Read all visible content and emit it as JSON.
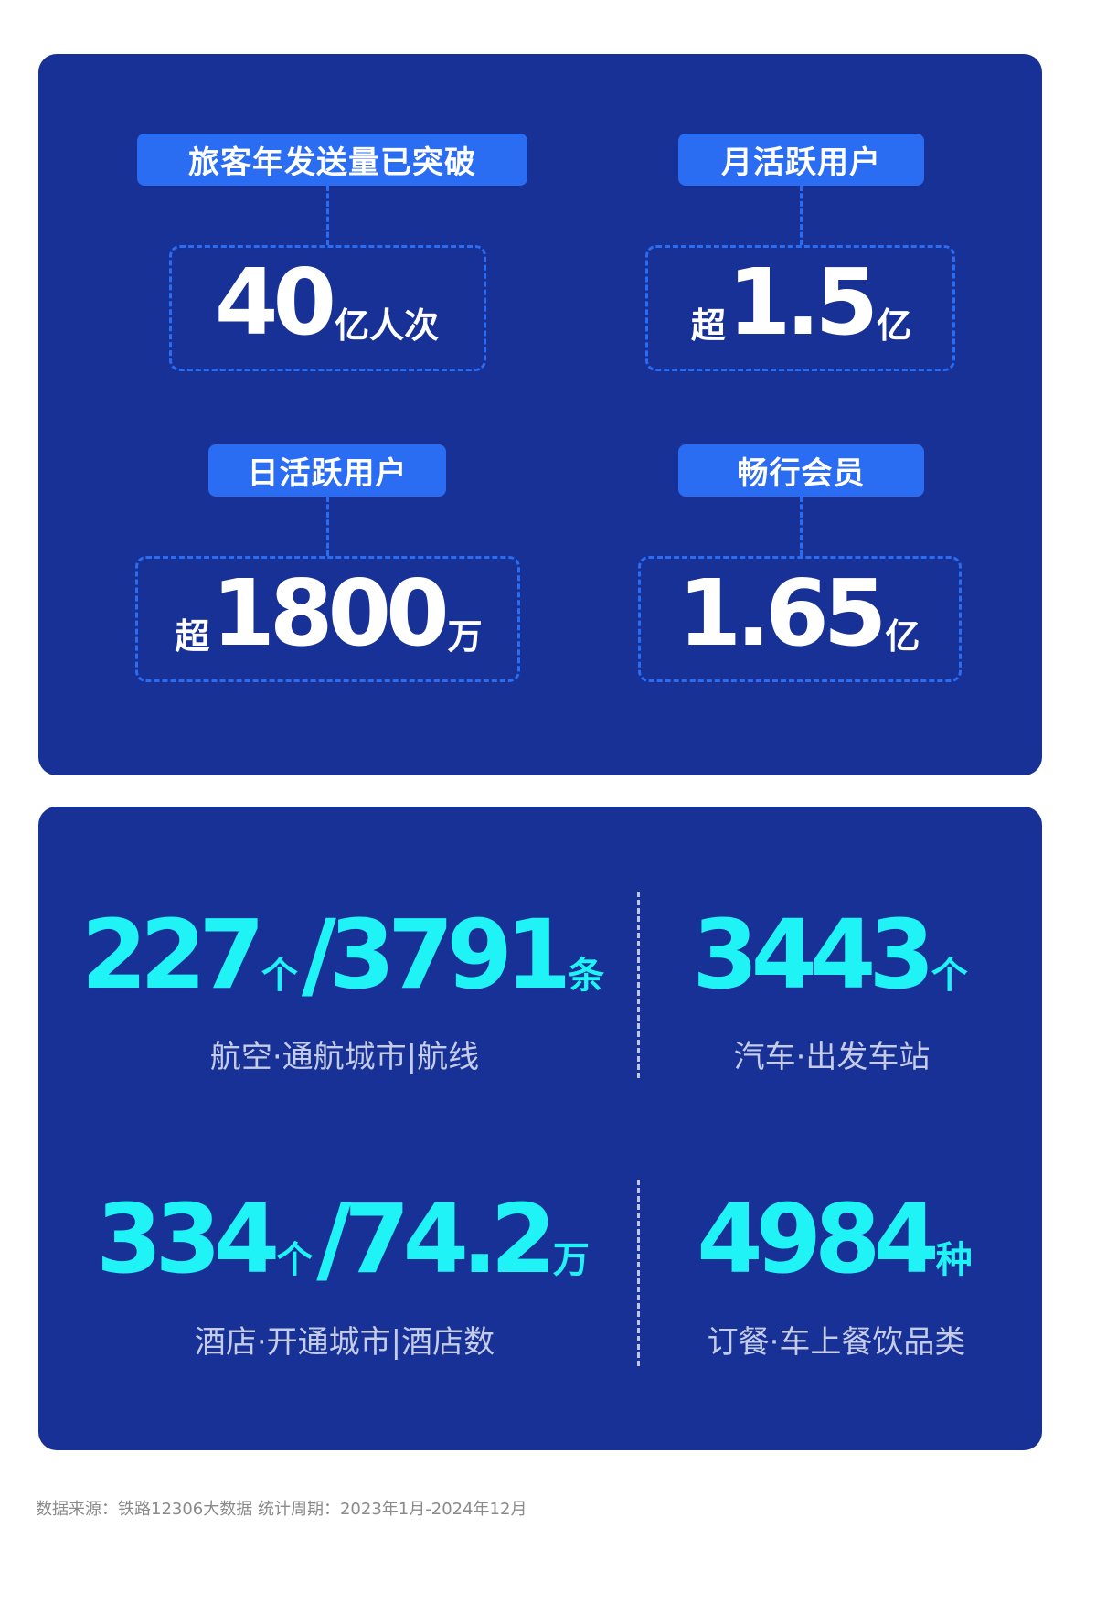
{
  "top": {
    "items": [
      {
        "label": "旅客年发送量已突破",
        "prefix": "",
        "value": "40",
        "unit": "亿人次"
      },
      {
        "label": "月活跃用户",
        "prefix": "超",
        "value": "1.5",
        "unit": "亿"
      },
      {
        "label": "日活跃用户",
        "prefix": "超",
        "value": "1800",
        "unit": "万"
      },
      {
        "label": "畅行会员",
        "prefix": "",
        "value": "1.65",
        "unit": "亿"
      }
    ]
  },
  "bottom": {
    "items": [
      {
        "v1": "227",
        "u1": "个",
        "sep": "/",
        "v2": "3791",
        "u2": "条",
        "caption": "航空·通航城市|航线"
      },
      {
        "v1": "3443",
        "u1": "个",
        "caption": "汽车·出发车站"
      },
      {
        "v1": "334",
        "u1": "个",
        "sep": "/",
        "v2": "74.2",
        "u2": "万",
        "caption": "酒店·开通城市|酒店数"
      },
      {
        "v1": "4984",
        "u1": "种",
        "caption": "订餐·车上餐饮品类"
      }
    ]
  },
  "footer": "数据来源：铁路12306大数据 统计周期：2023年1月-2024年12月",
  "colors": {
    "card": "#183197",
    "tag": "#2a6cf2",
    "accent": "#1ff3f5"
  }
}
